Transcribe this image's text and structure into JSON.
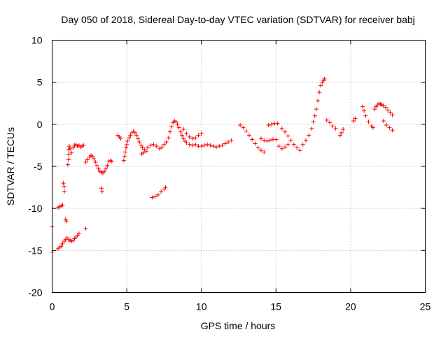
{
  "chart_data": {
    "type": "scatter",
    "title": "Day 050 of 2018, Sidereal Day-to-day VTEC variation (SDTVAR) for receiver babj",
    "xlabel": "GPS time / hours",
    "ylabel": "SDTVAR / TECUs",
    "xlim": [
      0,
      25
    ],
    "ylim": [
      -20,
      10
    ],
    "xticks": [
      0,
      5,
      10,
      15,
      20,
      25
    ],
    "yticks": [
      -20,
      -15,
      -10,
      -5,
      0,
      5,
      10
    ],
    "xtick_labels": [
      "0",
      "5",
      "10",
      "15",
      "20",
      "25"
    ],
    "ytick_labels": [
      "-20",
      "-15",
      "-10",
      "-5",
      "0",
      "5",
      "10"
    ],
    "grid": true,
    "marker": "+",
    "color": "#ff0000",
    "series": [
      {
        "name": "SDTVAR",
        "points": [
          [
            0.0,
            -12.2
          ],
          [
            0.0,
            -15.2
          ],
          [
            0.4,
            -14.8
          ],
          [
            0.5,
            -14.6
          ],
          [
            0.6,
            -14.5
          ],
          [
            0.7,
            -14.2
          ],
          [
            0.8,
            -13.9
          ],
          [
            0.9,
            -13.7
          ],
          [
            1.0,
            -13.5
          ],
          [
            1.1,
            -13.7
          ],
          [
            1.2,
            -13.8
          ],
          [
            1.3,
            -13.9
          ],
          [
            1.4,
            -13.8
          ],
          [
            1.5,
            -13.6
          ],
          [
            1.6,
            -13.4
          ],
          [
            1.7,
            -13.2
          ],
          [
            1.8,
            -13.0
          ],
          [
            2.25,
            -12.4
          ],
          [
            0.4,
            -9.9
          ],
          [
            0.5,
            -9.8
          ],
          [
            0.6,
            -9.7
          ],
          [
            0.7,
            -9.6
          ],
          [
            0.75,
            -7.0
          ],
          [
            0.8,
            -7.4
          ],
          [
            0.82,
            -8.0
          ],
          [
            0.9,
            -11.3
          ],
          [
            0.95,
            -11.5
          ],
          [
            1.05,
            -4.8
          ],
          [
            1.1,
            -4.2
          ],
          [
            1.1,
            -3.6
          ],
          [
            1.1,
            -3.0
          ],
          [
            1.15,
            -2.6
          ],
          [
            1.2,
            -2.9
          ],
          [
            1.3,
            -3.4
          ],
          [
            1.4,
            -2.8
          ],
          [
            1.5,
            -2.5
          ],
          [
            1.6,
            -2.4
          ],
          [
            1.7,
            -2.6
          ],
          [
            1.8,
            -2.5
          ],
          [
            1.9,
            -2.7
          ],
          [
            2.0,
            -2.6
          ],
          [
            2.1,
            -2.5
          ],
          [
            2.25,
            -4.5
          ],
          [
            2.35,
            -4.2
          ],
          [
            2.5,
            -3.9
          ],
          [
            2.6,
            -3.7
          ],
          [
            2.7,
            -3.8
          ],
          [
            2.8,
            -4.1
          ],
          [
            2.9,
            -4.5
          ],
          [
            3.0,
            -4.9
          ],
          [
            3.1,
            -5.3
          ],
          [
            3.2,
            -5.6
          ],
          [
            3.3,
            -5.7
          ],
          [
            3.4,
            -5.8
          ],
          [
            3.5,
            -5.6
          ],
          [
            3.6,
            -5.3
          ],
          [
            3.7,
            -4.9
          ],
          [
            3.8,
            -4.4
          ],
          [
            3.9,
            -4.3
          ],
          [
            4.0,
            -4.4
          ],
          [
            3.3,
            -7.6
          ],
          [
            3.35,
            -8.0
          ],
          [
            4.4,
            -1.3
          ],
          [
            4.5,
            -1.5
          ],
          [
            4.6,
            -1.7
          ],
          [
            4.8,
            -4.3
          ],
          [
            4.85,
            -3.8
          ],
          [
            4.9,
            -3.3
          ],
          [
            4.95,
            -2.8
          ],
          [
            5.0,
            -2.4
          ],
          [
            5.05,
            -2.0
          ],
          [
            5.15,
            -1.6
          ],
          [
            5.25,
            -1.3
          ],
          [
            5.35,
            -1.0
          ],
          [
            5.45,
            -0.8
          ],
          [
            5.55,
            -1.0
          ],
          [
            5.65,
            -1.3
          ],
          [
            5.75,
            -1.7
          ],
          [
            5.85,
            -2.1
          ],
          [
            5.95,
            -2.5
          ],
          [
            6.05,
            -2.8
          ],
          [
            6.2,
            -3.0
          ],
          [
            6.4,
            -2.8
          ],
          [
            6.6,
            -2.5
          ],
          [
            6.8,
            -2.4
          ],
          [
            7.0,
            -2.6
          ],
          [
            7.2,
            -2.9
          ],
          [
            7.35,
            -2.7
          ],
          [
            7.5,
            -2.4
          ],
          [
            7.65,
            -2.1
          ],
          [
            7.8,
            -1.6
          ],
          [
            7.9,
            -0.9
          ],
          [
            8.0,
            -0.3
          ],
          [
            8.1,
            0.2
          ],
          [
            8.2,
            0.4
          ],
          [
            8.3,
            0.3
          ],
          [
            8.4,
            0.0
          ],
          [
            8.5,
            -0.4
          ],
          [
            8.6,
            -0.9
          ],
          [
            8.7,
            -1.3
          ],
          [
            8.8,
            -1.7
          ],
          [
            8.9,
            -2.0
          ],
          [
            9.0,
            -2.2
          ],
          [
            9.2,
            -2.4
          ],
          [
            9.4,
            -2.5
          ],
          [
            9.6,
            -2.4
          ],
          [
            9.8,
            -2.6
          ],
          [
            10.0,
            -2.6
          ],
          [
            10.2,
            -2.5
          ],
          [
            10.4,
            -2.4
          ],
          [
            10.6,
            -2.5
          ],
          [
            10.8,
            -2.6
          ],
          [
            11.0,
            -2.7
          ],
          [
            11.2,
            -2.6
          ],
          [
            11.4,
            -2.5
          ],
          [
            11.6,
            -2.3
          ],
          [
            11.8,
            -2.1
          ],
          [
            12.0,
            -1.9
          ],
          [
            8.8,
            -0.6
          ],
          [
            9.0,
            -1.1
          ],
          [
            9.2,
            -1.5
          ],
          [
            9.4,
            -1.7
          ],
          [
            9.6,
            -1.6
          ],
          [
            9.8,
            -1.3
          ],
          [
            10.0,
            -1.1
          ],
          [
            6.0,
            -3.5
          ],
          [
            6.1,
            -3.4
          ],
          [
            6.3,
            -3.2
          ],
          [
            6.7,
            -8.7
          ],
          [
            6.9,
            -8.6
          ],
          [
            7.1,
            -8.4
          ],
          [
            7.3,
            -8.0
          ],
          [
            7.5,
            -7.7
          ],
          [
            7.6,
            -7.5
          ],
          [
            12.6,
            -0.1
          ],
          [
            12.8,
            -0.4
          ],
          [
            13.0,
            -0.8
          ],
          [
            13.2,
            -1.3
          ],
          [
            13.4,
            -1.8
          ],
          [
            13.6,
            -2.3
          ],
          [
            13.8,
            -2.8
          ],
          [
            14.0,
            -3.1
          ],
          [
            14.2,
            -3.3
          ],
          [
            14.0,
            -1.7
          ],
          [
            14.2,
            -1.9
          ],
          [
            14.4,
            -2.0
          ],
          [
            14.6,
            -1.9
          ],
          [
            14.8,
            -1.8
          ],
          [
            15.0,
            -1.8
          ],
          [
            14.5,
            -0.1
          ],
          [
            14.7,
            0.0
          ],
          [
            14.9,
            0.1
          ],
          [
            15.1,
            0.1
          ],
          [
            15.4,
            -0.5
          ],
          [
            15.6,
            -0.9
          ],
          [
            15.8,
            -1.4
          ],
          [
            16.0,
            -1.9
          ],
          [
            16.2,
            -2.4
          ],
          [
            16.4,
            -2.8
          ],
          [
            16.6,
            -3.1
          ],
          [
            15.2,
            -2.6
          ],
          [
            15.4,
            -2.9
          ],
          [
            15.6,
            -2.7
          ],
          [
            15.8,
            -2.4
          ],
          [
            16.8,
            -2.4
          ],
          [
            17.0,
            -1.9
          ],
          [
            17.2,
            -1.3
          ],
          [
            17.4,
            -0.5
          ],
          [
            17.5,
            0.3
          ],
          [
            17.6,
            1.0
          ],
          [
            17.7,
            1.8
          ],
          [
            17.8,
            2.8
          ],
          [
            17.9,
            3.8
          ],
          [
            18.0,
            4.6
          ],
          [
            18.1,
            5.0
          ],
          [
            18.2,
            5.2
          ],
          [
            18.25,
            5.4
          ],
          [
            18.4,
            0.5
          ],
          [
            18.6,
            0.2
          ],
          [
            18.8,
            -0.2
          ],
          [
            19.0,
            -0.5
          ],
          [
            19.3,
            -1.3
          ],
          [
            19.4,
            -1.0
          ],
          [
            19.5,
            -0.6
          ],
          [
            20.2,
            0.4
          ],
          [
            20.3,
            0.7
          ],
          [
            20.8,
            2.1
          ],
          [
            20.9,
            1.6
          ],
          [
            21.0,
            1.0
          ],
          [
            21.2,
            0.3
          ],
          [
            21.4,
            -0.2
          ],
          [
            21.5,
            -0.4
          ],
          [
            21.6,
            1.8
          ],
          [
            21.7,
            2.1
          ],
          [
            21.8,
            2.3
          ],
          [
            21.9,
            2.5
          ],
          [
            22.0,
            2.4
          ],
          [
            22.1,
            2.3
          ],
          [
            22.2,
            2.2
          ],
          [
            22.35,
            2.0
          ],
          [
            22.5,
            1.7
          ],
          [
            22.65,
            1.4
          ],
          [
            22.8,
            1.1
          ],
          [
            22.2,
            0.4
          ],
          [
            22.4,
            -0.1
          ],
          [
            22.6,
            -0.4
          ],
          [
            22.8,
            -0.7
          ]
        ]
      }
    ]
  }
}
